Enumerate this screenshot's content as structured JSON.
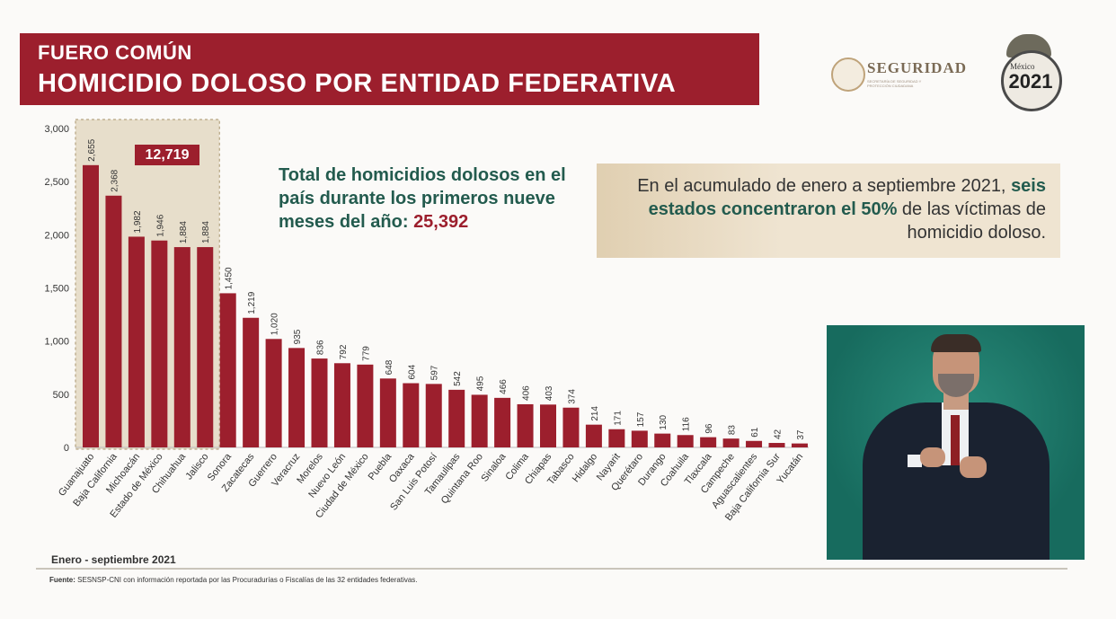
{
  "header": {
    "line1": "FUERO COMÚN",
    "line2": "HOMICIDIO DOLOSO POR ENTIDAD FEDERATIVA"
  },
  "logos": {
    "seguridad": "SEGURIDAD",
    "seguridad_sub": "SECRETARÍA DE SEGURIDAD Y PROTECCIÓN CIUDADANA",
    "emblem_year": "2021",
    "emblem_text": "México"
  },
  "badge": "12,719",
  "total": {
    "prefix": "Total de homicidios dolosos en el país durante los primeros nueve meses del año: ",
    "value": "25,392"
  },
  "callout": {
    "part1": "En el acumulado de enero a septiembre 2021, ",
    "highlight": "seis estados concentraron el 50%",
    "part2": " de las víctimas de homicidio doloso."
  },
  "period": "Enero - septiembre 2021",
  "source": {
    "label": "Fuente:",
    "text": " SESNSP-CNI con información reportada por las Procuradurías o Fiscalías de las 32 entidades federativas."
  },
  "colors": {
    "bar": "#9c1f2d",
    "highlight_box": "#d7c7a6",
    "green": "#235b4e"
  },
  "chart_data": {
    "type": "bar",
    "categories": [
      "Guanajuato",
      "Baja California",
      "Michoacán",
      "Estado de México",
      "Chihuahua",
      "Jalisco",
      "Sonora",
      "Zacatecas",
      "Guerrero",
      "Veracruz",
      "Morelos",
      "Nuevo León",
      "Ciudad de México",
      "Puebla",
      "Oaxaca",
      "San Luis Potosí",
      "Tamaulipas",
      "Quintana Roo",
      "Sinaloa",
      "Colima",
      "Chiapas",
      "Tabasco",
      "Hidalgo",
      "Nayarit",
      "Querétaro",
      "Durango",
      "Coahuila",
      "Tlaxcala",
      "Campeche",
      "Aguascalientes",
      "Baja California Sur",
      "Yucatán"
    ],
    "values": [
      2655,
      2368,
      1982,
      1946,
      1884,
      1884,
      1450,
      1219,
      1020,
      935,
      836,
      792,
      779,
      648,
      604,
      597,
      542,
      495,
      466,
      406,
      403,
      374,
      214,
      171,
      157,
      130,
      116,
      96,
      83,
      61,
      42,
      37
    ],
    "value_labels": [
      "2,655",
      "2,368",
      "1,982",
      "1,946",
      "1,884",
      "1,884",
      "1,450",
      "1,219",
      "1,020",
      "935",
      "836",
      "792",
      "779",
      "648",
      "604",
      "597",
      "542",
      "495",
      "466",
      "406",
      "403",
      "374",
      "214",
      "171",
      "157",
      "130",
      "116",
      "96",
      "83",
      "61",
      "42",
      "37"
    ],
    "yticks": [
      "0",
      "500",
      "1,000",
      "1,500",
      "2,000",
      "2,500",
      "3,000"
    ],
    "ytick_values": [
      0,
      500,
      1000,
      1500,
      2000,
      2500,
      3000
    ],
    "ylim": [
      0,
      3000
    ],
    "highlighted_count": 6,
    "title": "",
    "xlabel": "",
    "ylabel": "",
    "grid": false
  }
}
